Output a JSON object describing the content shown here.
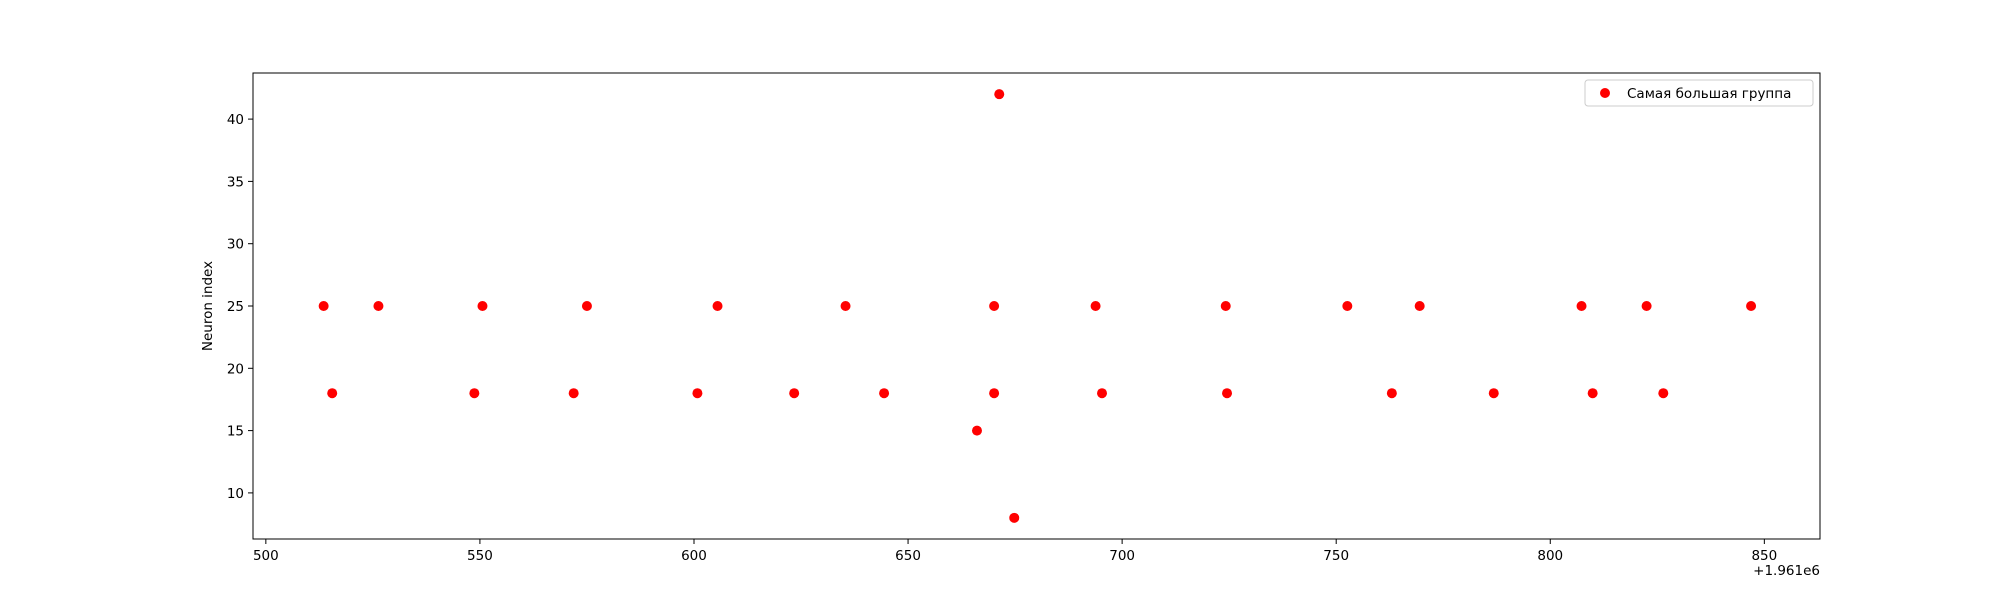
{
  "chart_data": {
    "type": "scatter",
    "title": "",
    "xlabel": "",
    "ylabel": "Neuron index",
    "x_offset_label": "+1.961e6",
    "xlim": [
      497,
      863
    ],
    "ylim": [
      6.3,
      43.7
    ],
    "xticks": [
      500,
      550,
      600,
      650,
      700,
      750,
      800,
      850
    ],
    "yticks": [
      10,
      15,
      20,
      25,
      30,
      35,
      40
    ],
    "grid": false,
    "legend_position": "top-right",
    "series": [
      {
        "name": "Самая большая группа",
        "color": "#ff0000",
        "points": [
          {
            "x": 513.5,
            "y": 25
          },
          {
            "x": 515.5,
            "y": 18
          },
          {
            "x": 526.3,
            "y": 25
          },
          {
            "x": 548.7,
            "y": 18
          },
          {
            "x": 550.6,
            "y": 25
          },
          {
            "x": 571.9,
            "y": 18
          },
          {
            "x": 575.0,
            "y": 25
          },
          {
            "x": 600.8,
            "y": 18
          },
          {
            "x": 605.5,
            "y": 25
          },
          {
            "x": 623.4,
            "y": 18
          },
          {
            "x": 635.4,
            "y": 25
          },
          {
            "x": 644.4,
            "y": 18
          },
          {
            "x": 666.1,
            "y": 15
          },
          {
            "x": 670.1,
            "y": 25
          },
          {
            "x": 670.1,
            "y": 18
          },
          {
            "x": 671.3,
            "y": 42
          },
          {
            "x": 674.8,
            "y": 8
          },
          {
            "x": 693.8,
            "y": 25
          },
          {
            "x": 695.3,
            "y": 18
          },
          {
            "x": 724.2,
            "y": 25
          },
          {
            "x": 724.5,
            "y": 18
          },
          {
            "x": 752.6,
            "y": 25
          },
          {
            "x": 763.0,
            "y": 18
          },
          {
            "x": 769.5,
            "y": 25
          },
          {
            "x": 786.8,
            "y": 18
          },
          {
            "x": 807.3,
            "y": 25
          },
          {
            "x": 809.9,
            "y": 18
          },
          {
            "x": 822.5,
            "y": 25
          },
          {
            "x": 826.4,
            "y": 18
          },
          {
            "x": 846.9,
            "y": 25
          }
        ]
      }
    ]
  }
}
